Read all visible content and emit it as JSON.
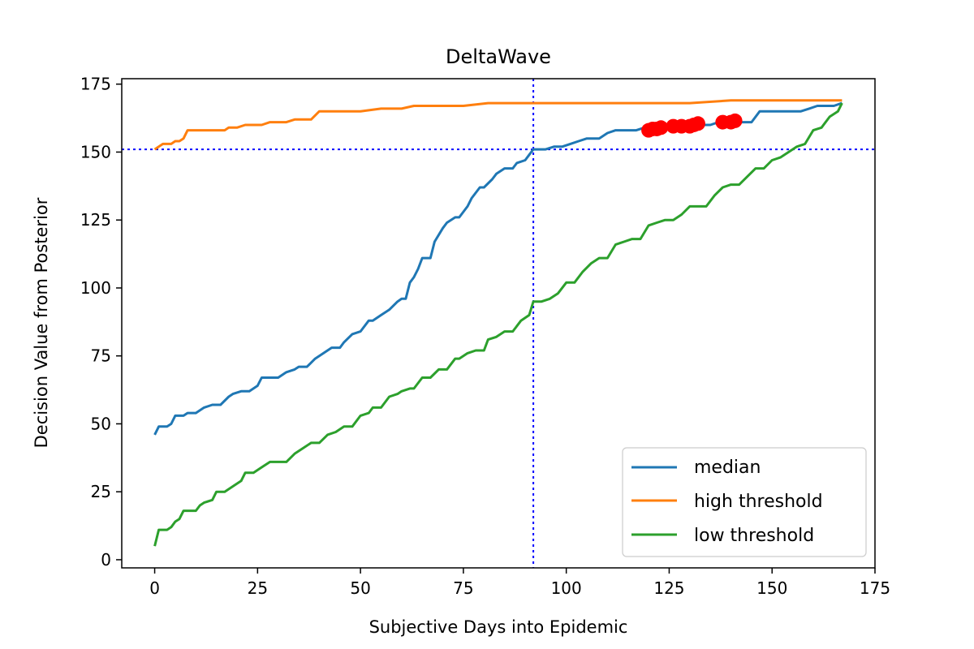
{
  "chart_data": {
    "type": "line",
    "title": "DeltaWave",
    "xlabel": "Subjective Days into Epidemic",
    "ylabel": "Decision Value from Posterior",
    "xlim": [
      -8,
      175
    ],
    "ylim": [
      -3,
      177
    ],
    "xticks": [
      0,
      25,
      50,
      75,
      100,
      125,
      150,
      175
    ],
    "yticks": [
      0,
      25,
      50,
      75,
      100,
      125,
      150,
      175
    ],
    "grid": false,
    "legend_position": "lower-right",
    "series": [
      {
        "name": "median",
        "color": "#1f77b4",
        "x": [
          0,
          1,
          3,
          4,
          5,
          7,
          8,
          10,
          12,
          14,
          16,
          18,
          19,
          21,
          23,
          25,
          26,
          27,
          30,
          32,
          34,
          35,
          37,
          39,
          40,
          43,
          45,
          46,
          48,
          50,
          52,
          53,
          55,
          57,
          59,
          60,
          61,
          62,
          63,
          64,
          65,
          66,
          67,
          68,
          70,
          71,
          73,
          74,
          76,
          77,
          79,
          80,
          82,
          83,
          85,
          87,
          88,
          90,
          91,
          92,
          95,
          97,
          99,
          101,
          103,
          105,
          108,
          110,
          112,
          113,
          115,
          117,
          119,
          121,
          123,
          125,
          127,
          129,
          131,
          133,
          135,
          137,
          139,
          141,
          143,
          145,
          147,
          149,
          151,
          153,
          155,
          157,
          159,
          161,
          163,
          165,
          167
        ],
        "values": [
          46,
          49,
          49,
          50,
          53,
          53,
          54,
          54,
          56,
          57,
          57,
          60,
          61,
          62,
          62,
          64,
          67,
          67,
          67,
          69,
          70,
          71,
          71,
          74,
          75,
          78,
          78,
          80,
          83,
          84,
          88,
          88,
          90,
          92,
          95,
          96,
          96,
          102,
          104,
          107,
          111,
          111,
          111,
          117,
          122,
          124,
          126,
          126,
          130,
          133,
          137,
          137,
          140,
          142,
          144,
          144,
          146,
          147,
          149,
          151,
          151,
          152,
          152,
          153,
          154,
          155,
          155,
          157,
          158,
          158,
          158,
          158,
          159,
          159,
          159,
          159,
          159,
          160,
          160,
          160,
          160,
          161,
          161,
          161,
          161,
          161,
          165,
          165,
          165,
          165,
          165,
          165,
          166,
          167,
          167,
          167,
          168
        ]
      },
      {
        "name": "high threshold",
        "color": "#ff7f0e",
        "x": [
          0,
          1,
          2,
          4,
          5,
          6,
          7,
          8,
          10,
          12,
          14,
          17,
          18,
          20,
          22,
          24,
          26,
          28,
          30,
          32,
          34,
          36,
          38,
          40,
          45,
          50,
          55,
          60,
          63,
          70,
          75,
          81,
          85,
          90,
          100,
          110,
          120,
          130,
          140,
          150,
          160,
          167
        ],
        "values": [
          151,
          152,
          153,
          153,
          154,
          154,
          155,
          158,
          158,
          158,
          158,
          158,
          159,
          159,
          160,
          160,
          160,
          161,
          161,
          161,
          162,
          162,
          162,
          165,
          165,
          165,
          166,
          166,
          167,
          167,
          167,
          168,
          168,
          168,
          168,
          168,
          168,
          168,
          169,
          169,
          169,
          169
        ]
      },
      {
        "name": "low threshold",
        "color": "#2ca02c",
        "x": [
          0,
          1,
          3,
          4,
          5,
          6,
          7,
          8,
          10,
          11,
          12,
          14,
          15,
          17,
          19,
          21,
          22,
          24,
          26,
          28,
          30,
          32,
          34,
          36,
          38,
          40,
          42,
          44,
          46,
          48,
          50,
          52,
          53,
          55,
          57,
          59,
          60,
          62,
          63,
          65,
          67,
          69,
          71,
          73,
          74,
          76,
          78,
          80,
          81,
          83,
          85,
          87,
          89,
          91,
          92,
          94,
          96,
          98,
          100,
          102,
          104,
          106,
          108,
          110,
          112,
          114,
          116,
          118,
          120,
          122,
          124,
          126,
          128,
          130,
          132,
          134,
          136,
          138,
          140,
          142,
          144,
          146,
          148,
          150,
          152,
          154,
          156,
          158,
          160,
          162,
          164,
          166,
          167
        ],
        "values": [
          5,
          11,
          11,
          12,
          14,
          15,
          18,
          18,
          18,
          20,
          21,
          22,
          25,
          25,
          27,
          29,
          32,
          32,
          34,
          36,
          36,
          36,
          39,
          41,
          43,
          43,
          46,
          47,
          49,
          49,
          53,
          54,
          56,
          56,
          60,
          61,
          62,
          63,
          63,
          67,
          67,
          70,
          70,
          74,
          74,
          76,
          77,
          77,
          81,
          82,
          84,
          84,
          88,
          90,
          95,
          95,
          96,
          98,
          102,
          102,
          106,
          109,
          111,
          111,
          116,
          117,
          118,
          118,
          123,
          124,
          125,
          125,
          127,
          130,
          130,
          130,
          134,
          137,
          138,
          138,
          141,
          144,
          144,
          147,
          148,
          150,
          152,
          153,
          158,
          159,
          163,
          165,
          168
        ]
      }
    ],
    "markers": {
      "color": "#ff0000",
      "points": [
        [
          120,
          158
        ],
        [
          121,
          158.5
        ],
        [
          122,
          158.5
        ],
        [
          123,
          159
        ],
        [
          126,
          159.5
        ],
        [
          128,
          159.5
        ],
        [
          130,
          159.5
        ],
        [
          131,
          160
        ],
        [
          132,
          160.5
        ],
        [
          138,
          161
        ],
        [
          140,
          161
        ],
        [
          141,
          161.5
        ]
      ]
    },
    "reference_lines": {
      "color": "#0000ff",
      "vertical_x": 92,
      "horizontal_y": 151
    }
  }
}
